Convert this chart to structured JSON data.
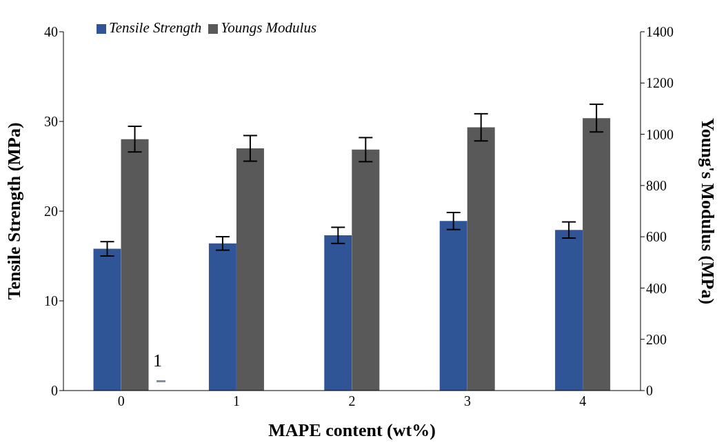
{
  "chart_data": {
    "type": "bar",
    "xlabel": "MAPE content (wt%)",
    "ylabel": "Tensile Strength (MPa)",
    "y2label": "Young's Modulus (MPa)",
    "categories": [
      "0",
      "1",
      "2",
      "3",
      "4"
    ],
    "series": [
      {
        "name": "Tensile Strength",
        "color": "#2f5597",
        "values": [
          15.8,
          16.4,
          17.3,
          18.9,
          17.9
        ],
        "errors": [
          0.8,
          0.75,
          0.9,
          0.95,
          0.9
        ]
      },
      {
        "name": "Youngs Modulus",
        "color": "#595959",
        "axis": "y2",
        "values": [
          981,
          945,
          940,
          1027,
          1063
        ],
        "errors": [
          50,
          50,
          47,
          53,
          54
        ]
      }
    ],
    "ylim": [
      0,
      40
    ],
    "yticks": [
      0,
      10,
      20,
      30,
      40
    ],
    "y2lim": [
      0,
      1400
    ],
    "y2ticks": [
      0,
      200,
      400,
      600,
      800,
      1000,
      1200,
      1400
    ],
    "grid": false,
    "legend": "top left",
    "annotations": [
      "1"
    ]
  }
}
